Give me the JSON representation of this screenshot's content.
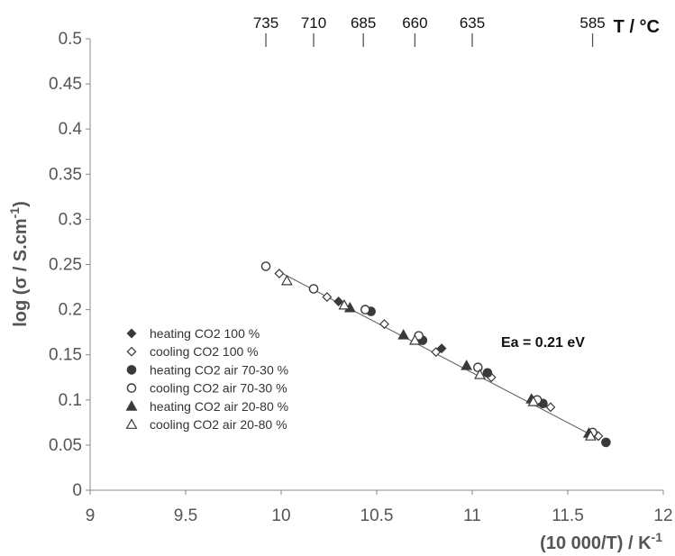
{
  "chart_data": {
    "type": "scatter",
    "xlabel": "(10 000/T) / K",
    "xlabel_sup": "-1",
    "ylabel": "log (σ / S.cm",
    "ylabel_sup": "-1",
    "ylabel_close": ")",
    "xlim": [
      9,
      12
    ],
    "ylim": [
      0,
      0.5
    ],
    "x_ticks": [
      "9",
      "9.5",
      "10",
      "10.5",
      "11",
      "11.5",
      "12"
    ],
    "y_ticks": [
      "0",
      "0.05",
      "0.1",
      "0.15",
      "0.2",
      "0.25",
      "0.3",
      "0.35",
      "0.4",
      "0.45",
      "0.5"
    ],
    "top_axis": {
      "label": "T / °C",
      "ticks": [
        {
          "label": "735",
          "x": 9.92
        },
        {
          "label": "710",
          "x": 10.17
        },
        {
          "label": "685",
          "x": 10.43
        },
        {
          "label": "660",
          "x": 10.7
        },
        {
          "label": "635",
          "x": 11.0
        },
        {
          "label": "585",
          "x": 11.63
        }
      ]
    },
    "grid": false,
    "legend_position": "lower-left",
    "annotation": "Ea = 0.21 eV",
    "fit_line": {
      "x": [
        9.98,
        11.67
      ],
      "y": [
        0.243,
        0.056
      ]
    },
    "series": [
      {
        "name": "heating CO2 100 %",
        "marker": "diamond",
        "filled": true,
        "points": [
          [
            10.3,
            0.209
          ],
          [
            10.84,
            0.157
          ]
        ]
      },
      {
        "name": "cooling CO2 100 %",
        "marker": "diamond",
        "filled": false,
        "points": [
          [
            9.99,
            0.24
          ],
          [
            10.24,
            0.214
          ],
          [
            10.54,
            0.184
          ],
          [
            10.81,
            0.153
          ],
          [
            11.1,
            0.125
          ],
          [
            11.41,
            0.092
          ],
          [
            11.66,
            0.06
          ]
        ]
      },
      {
        "name": "heating CO2 air 70-30 %",
        "marker": "circle",
        "filled": true,
        "points": [
          [
            10.47,
            0.198
          ],
          [
            10.74,
            0.166
          ],
          [
            11.08,
            0.13
          ],
          [
            11.37,
            0.096
          ],
          [
            11.7,
            0.053
          ]
        ]
      },
      {
        "name": "cooling CO2 air  70-30 %",
        "marker": "circle",
        "filled": false,
        "points": [
          [
            9.92,
            0.248
          ],
          [
            10.17,
            0.223
          ],
          [
            10.44,
            0.2
          ],
          [
            10.72,
            0.171
          ],
          [
            11.03,
            0.136
          ],
          [
            11.34,
            0.1
          ],
          [
            11.63,
            0.064
          ]
        ]
      },
      {
        "name": "heating CO2 air 20-80 %",
        "marker": "triangle",
        "filled": true,
        "points": [
          [
            10.36,
            0.202
          ],
          [
            10.64,
            0.172
          ],
          [
            10.97,
            0.138
          ],
          [
            11.31,
            0.101
          ],
          [
            11.61,
            0.063
          ]
        ]
      },
      {
        "name": "cooling CO2 air 20-80 %",
        "marker": "triangle",
        "filled": false,
        "points": [
          [
            10.03,
            0.232
          ],
          [
            10.33,
            0.205
          ],
          [
            10.7,
            0.166
          ],
          [
            11.04,
            0.128
          ],
          [
            11.32,
            0.098
          ],
          [
            11.62,
            0.06
          ]
        ]
      }
    ]
  }
}
